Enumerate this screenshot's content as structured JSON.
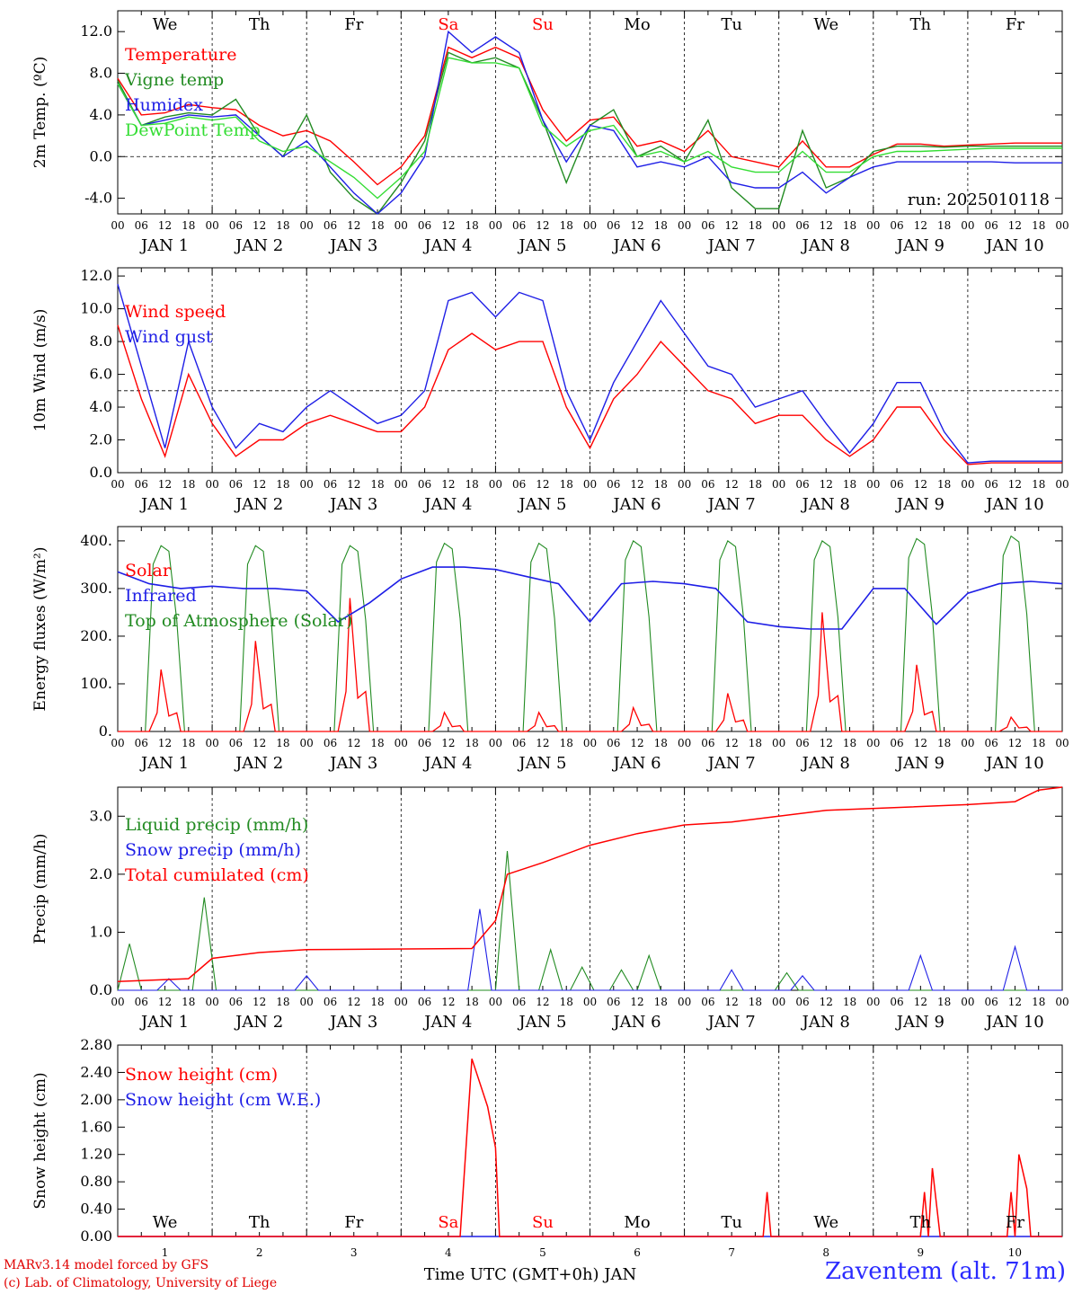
{
  "footer": {
    "credit_line1": "MARv3.14 model forced by GFS",
    "credit_line2": "(c) Lab. of Climatology, University of Liege",
    "station": "Zaventem (alt. 71m)",
    "xlabel": "Time UTC (GMT+0h) JAN"
  },
  "colors": {
    "red": "#ff0000",
    "green": "#228b22",
    "blue": "#1e1ee6",
    "lightgreen": "#33dd33",
    "axis": "#000000"
  },
  "chart_data": [
    {
      "type": "line",
      "panel": "temperature",
      "ylabel": "2m Temp. (ºC)",
      "ylim": [
        -5.5,
        14
      ],
      "yticks": [
        "-4.0",
        "0.0",
        "4.0",
        "8.0",
        "12.0"
      ],
      "ytick_values": [
        -4,
        0,
        4,
        8,
        12
      ],
      "reference_line": 0,
      "day_names": [
        "We",
        "Th",
        "Fr",
        "Sa",
        "Su",
        "Mo",
        "Tu",
        "We",
        "Th",
        "Fr"
      ],
      "day_name_colors": [
        "black",
        "black",
        "black",
        "red",
        "red",
        "black",
        "black",
        "black",
        "black",
        "black"
      ],
      "hour_ticks": [
        "00",
        "06",
        "12",
        "18"
      ],
      "date_labels": [
        "JAN  1",
        "JAN  2",
        "JAN  3",
        "JAN  4",
        "JAN  5",
        "JAN  6",
        "JAN  7",
        "JAN  8",
        "JAN  9",
        "JAN 10"
      ],
      "annotation": "run: 2025010118",
      "x_hours": [
        0,
        6,
        12,
        18,
        24,
        30,
        36,
        42,
        48,
        54,
        60,
        66,
        72,
        78,
        84,
        90,
        96,
        102,
        108,
        114,
        120,
        126,
        132,
        138,
        144,
        150,
        156,
        162,
        168,
        174,
        180,
        186,
        192,
        198,
        204,
        210,
        216,
        222,
        228,
        234,
        240
      ],
      "series": [
        {
          "name": "Temperature",
          "color": "red",
          "values": [
            7.5,
            4.0,
            4.2,
            5.0,
            4.7,
            4.5,
            3.0,
            2.0,
            2.5,
            1.5,
            -0.5,
            -2.7,
            -1.0,
            2.0,
            10.5,
            9.5,
            10.5,
            9.5,
            4.5,
            1.5,
            3.5,
            3.8,
            1.0,
            1.5,
            0.5,
            2.5,
            0.0,
            -0.5,
            -1.0,
            1.5,
            -1.0,
            -1.0,
            0.2,
            1.2,
            1.2,
            1.0,
            1.1,
            1.2,
            1.3,
            1.3,
            1.3
          ]
        },
        {
          "name": "Vigne temp",
          "color": "green",
          "values": [
            7.3,
            3.0,
            3.8,
            4.2,
            4.0,
            5.5,
            2.0,
            0.0,
            4.0,
            -1.5,
            -4.0,
            -5.5,
            -2.5,
            1.5,
            10.0,
            9.0,
            9.5,
            8.5,
            3.5,
            -2.5,
            3.0,
            4.5,
            0.0,
            1.0,
            -0.5,
            3.5,
            -3.0,
            -5.0,
            -5.0,
            2.5,
            -3.0,
            -2.0,
            0.5,
            1.0,
            1.0,
            0.9,
            1.0,
            1.0,
            1.0,
            1.0,
            1.0
          ]
        },
        {
          "name": "Humidex",
          "color": "blue",
          "values": [
            7.0,
            3.0,
            3.5,
            4.0,
            3.8,
            4.0,
            2.0,
            0.0,
            1.5,
            -1.0,
            -3.5,
            -5.5,
            -3.5,
            0.0,
            12.0,
            10.0,
            11.5,
            10.0,
            3.5,
            -0.5,
            3.0,
            2.5,
            -1.0,
            -0.5,
            -1.0,
            0.0,
            -2.5,
            -3.0,
            -3.0,
            -1.5,
            -3.5,
            -2.0,
            -1.0,
            -0.5,
            -0.5,
            -0.5,
            -0.5,
            -0.5,
            -0.6,
            -0.6,
            -0.6
          ]
        },
        {
          "name": "DewPoint Temp",
          "color": "lightgreen",
          "values": [
            7.0,
            3.0,
            3.2,
            3.8,
            3.5,
            3.8,
            1.5,
            0.5,
            1.0,
            -0.5,
            -2.0,
            -4.0,
            -2.0,
            0.5,
            9.5,
            9.0,
            9.0,
            8.5,
            3.0,
            1.0,
            2.5,
            3.0,
            0.0,
            0.5,
            -0.5,
            0.5,
            -1.0,
            -1.5,
            -1.5,
            0.5,
            -1.5,
            -1.5,
            0.0,
            0.5,
            0.5,
            0.6,
            0.7,
            0.8,
            0.8,
            0.8,
            0.8
          ]
        }
      ]
    },
    {
      "type": "line",
      "panel": "wind",
      "ylabel": "10m Wind (m/s)",
      "ylim": [
        0,
        12.5
      ],
      "yticks": [
        "0.0",
        "2.0",
        "4.0",
        "6.0",
        "8.0",
        "10.0",
        "12.0"
      ],
      "ytick_values": [
        0,
        2,
        4,
        6,
        8,
        10,
        12
      ],
      "reference_line": 5,
      "hour_ticks": [
        "00",
        "06",
        "12",
        "18"
      ],
      "date_labels": [
        "JAN  1",
        "JAN  2",
        "JAN  3",
        "JAN  4",
        "JAN  5",
        "JAN  6",
        "JAN  7",
        "JAN  8",
        "JAN  9",
        "JAN 10"
      ],
      "x_hours": [
        0,
        6,
        12,
        18,
        24,
        30,
        36,
        42,
        48,
        54,
        60,
        66,
        72,
        78,
        84,
        90,
        96,
        102,
        108,
        114,
        120,
        126,
        132,
        138,
        144,
        150,
        156,
        162,
        168,
        174,
        180,
        186,
        192,
        198,
        204,
        210,
        216,
        222,
        228,
        234,
        240
      ],
      "series": [
        {
          "name": "Wind speed",
          "color": "red",
          "values": [
            9.0,
            4.5,
            1.0,
            6.0,
            3.0,
            1.0,
            2.0,
            2.0,
            3.0,
            3.5,
            3.0,
            2.5,
            2.5,
            4.0,
            7.5,
            8.5,
            7.5,
            8.0,
            8.0,
            4.0,
            1.5,
            4.5,
            6.0,
            8.0,
            6.5,
            5.0,
            4.5,
            3.0,
            3.5,
            3.5,
            2.0,
            1.0,
            2.0,
            4.0,
            4.0,
            2.0,
            0.5,
            0.6,
            0.6,
            0.6,
            0.6
          ]
        },
        {
          "name": "Wind gust",
          "color": "blue",
          "values": [
            11.5,
            6.5,
            1.5,
            8.0,
            4.0,
            1.5,
            3.0,
            2.5,
            4.0,
            5.0,
            4.0,
            3.0,
            3.5,
            5.0,
            10.5,
            11.0,
            9.5,
            11.0,
            10.5,
            5.0,
            2.0,
            5.5,
            8.0,
            10.5,
            8.5,
            6.5,
            6.0,
            4.0,
            4.5,
            5.0,
            3.0,
            1.2,
            3.0,
            5.5,
            5.5,
            2.5,
            0.6,
            0.7,
            0.7,
            0.7,
            0.7
          ]
        }
      ]
    },
    {
      "type": "line",
      "panel": "energy",
      "ylabel": "Energy fluxes (W/m²)",
      "ylim": [
        0,
        430
      ],
      "yticks": [
        "0.",
        "100.",
        "200.",
        "300.",
        "400."
      ],
      "ytick_values": [
        0,
        100,
        200,
        300,
        400
      ],
      "hour_ticks": [
        "00",
        "06",
        "12",
        "18"
      ],
      "date_labels": [
        "JAN  1",
        "JAN  2",
        "JAN  3",
        "JAN  4",
        "JAN  5",
        "JAN  6",
        "JAN  7",
        "JAN  8",
        "JAN  9",
        "JAN 10"
      ],
      "day_peaks_solar": [
        130,
        190,
        280,
        40,
        40,
        50,
        80,
        250,
        140,
        30
      ],
      "day_peaks_toa": [
        390,
        390,
        390,
        395,
        395,
        400,
        400,
        400,
        405,
        410
      ],
      "infrared": [
        335,
        310,
        300,
        305,
        300,
        300,
        295,
        230,
        270,
        320,
        345,
        345,
        340,
        325,
        310,
        230,
        310,
        315,
        310,
        300,
        230,
        220,
        215,
        215,
        300,
        300,
        225,
        290,
        310,
        315,
        310
      ],
      "series": [
        {
          "name": "Solar",
          "color": "red"
        },
        {
          "name": "Infrared",
          "color": "blue"
        },
        {
          "name": "Top of Atmosphere (Solar)",
          "color": "green"
        }
      ]
    },
    {
      "type": "line",
      "panel": "precip",
      "ylabel": "Precip (mm/h)",
      "ylim": [
        0,
        3.5
      ],
      "yticks": [
        "0.0",
        "1.0",
        "2.0",
        "3.0"
      ],
      "ytick_values": [
        0,
        1,
        2,
        3
      ],
      "hour_ticks": [
        "00",
        "06",
        "12",
        "18"
      ],
      "date_labels": [
        "JAN  1",
        "JAN  2",
        "JAN  3",
        "JAN  4",
        "JAN  5",
        "JAN  6",
        "JAN  7",
        "JAN  8",
        "JAN  9",
        "JAN 10"
      ],
      "liquid_peaks": [
        [
          3,
          0.8
        ],
        [
          22,
          1.6
        ],
        [
          99,
          2.4
        ],
        [
          110,
          0.7
        ],
        [
          118,
          0.4
        ],
        [
          128,
          0.35
        ],
        [
          135,
          0.6
        ],
        [
          170,
          0.3
        ]
      ],
      "snow_peaks": [
        [
          13,
          0.2
        ],
        [
          48,
          0.25
        ],
        [
          92,
          1.4
        ],
        [
          156,
          0.35
        ],
        [
          174,
          0.25
        ],
        [
          204,
          0.6
        ],
        [
          228,
          0.75
        ]
      ],
      "total": [
        [
          0,
          0.15
        ],
        [
          18,
          0.2
        ],
        [
          24,
          0.55
        ],
        [
          36,
          0.65
        ],
        [
          48,
          0.7
        ],
        [
          90,
          0.72
        ],
        [
          96,
          1.2
        ],
        [
          99,
          2.0
        ],
        [
          108,
          2.2
        ],
        [
          120,
          2.5
        ],
        [
          132,
          2.7
        ],
        [
          144,
          2.85
        ],
        [
          156,
          2.9
        ],
        [
          168,
          3.0
        ],
        [
          180,
          3.1
        ],
        [
          198,
          3.15
        ],
        [
          216,
          3.2
        ],
        [
          228,
          3.25
        ],
        [
          234,
          3.45
        ],
        [
          240,
          3.5
        ]
      ],
      "series": [
        {
          "name": "Liquid precip (mm/h)",
          "color": "green"
        },
        {
          "name": "Snow precip (mm/h)",
          "color": "blue"
        },
        {
          "name": "Total cumulated (cm)",
          "color": "red"
        }
      ]
    },
    {
      "type": "line",
      "panel": "snow",
      "ylabel": "Snow height (cm)",
      "ylim": [
        0,
        2.8
      ],
      "yticks": [
        "0.00",
        "0.40",
        "0.80",
        "1.20",
        "1.60",
        "2.00",
        "2.40",
        "2.80"
      ],
      "ytick_values": [
        0,
        0.4,
        0.8,
        1.2,
        1.6,
        2.0,
        2.4,
        2.8
      ],
      "day_names": [
        "We",
        "Th",
        "Fr",
        "Sa",
        "Su",
        "Mo",
        "Tu",
        "We",
        "Th",
        "Fr"
      ],
      "day_name_colors": [
        "black",
        "black",
        "black",
        "red",
        "red",
        "black",
        "black",
        "black",
        "black",
        "black"
      ],
      "day_numbers": [
        "1",
        "2",
        "3",
        "4",
        "5",
        "6",
        "7",
        "8",
        "9",
        "10"
      ],
      "snow_cm": [
        [
          0,
          0
        ],
        [
          87,
          0
        ],
        [
          90,
          2.6
        ],
        [
          94,
          1.9
        ],
        [
          96,
          1.3
        ],
        [
          97,
          0
        ],
        [
          164,
          0
        ],
        [
          165,
          0.65
        ],
        [
          166,
          0
        ],
        [
          204,
          0
        ],
        [
          205,
          0.65
        ],
        [
          206,
          0
        ],
        [
          207,
          1.0
        ],
        [
          209,
          0
        ],
        [
          226,
          0
        ],
        [
          227,
          0.65
        ],
        [
          228,
          0
        ],
        [
          229,
          1.2
        ],
        [
          231,
          0.7
        ],
        [
          232,
          0
        ],
        [
          240,
          0
        ]
      ],
      "series": [
        {
          "name": "Snow height (cm)",
          "color": "red"
        },
        {
          "name": "Snow height (cm W.E.)",
          "color": "blue"
        }
      ]
    }
  ]
}
